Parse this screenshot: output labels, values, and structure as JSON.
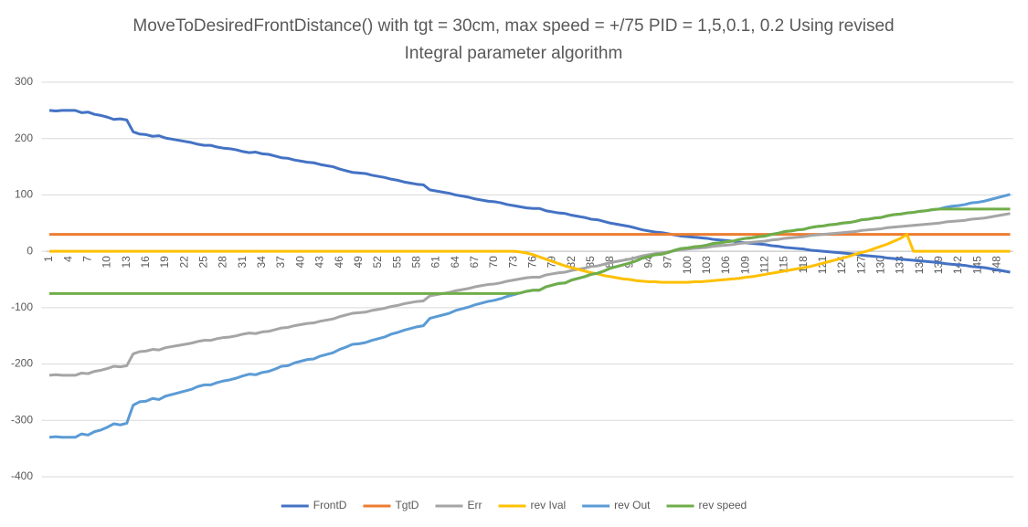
{
  "chart_data": {
    "type": "line",
    "title": "MoveToDesiredFrontDistance() with tgt = 30cm, max speed = +/75 PID = 1,5,0.1, 0.2 Using revised Integral parameter algorithm",
    "categories": [
      1,
      null,
      null,
      4,
      null,
      null,
      7,
      null,
      null,
      10,
      null,
      null,
      13,
      null,
      null,
      16,
      null,
      null,
      19,
      null,
      null,
      22,
      null,
      null,
      25,
      null,
      null,
      28,
      null,
      null,
      31,
      null,
      null,
      34,
      null,
      null,
      37,
      null,
      null,
      40,
      null,
      null,
      43,
      null,
      null,
      46,
      null,
      null,
      49,
      null,
      null,
      52,
      null,
      null,
      55,
      null,
      null,
      58,
      null,
      null,
      61,
      null,
      null,
      64,
      null,
      null,
      67,
      null,
      null,
      70,
      null,
      null,
      73,
      null,
      null,
      76,
      null,
      null,
      79,
      null,
      null,
      82,
      null,
      null,
      85,
      null,
      null,
      88,
      null,
      null,
      91,
      null,
      null,
      94,
      null,
      null,
      97,
      null,
      null,
      100,
      null,
      null,
      103,
      null,
      null,
      106,
      null,
      null,
      109,
      null,
      null,
      112,
      null,
      null,
      115,
      null,
      null,
      118,
      null,
      null,
      121,
      null,
      null,
      124,
      null,
      null,
      127,
      null,
      null,
      130,
      null,
      null,
      133,
      null,
      null,
      136,
      null,
      null,
      139,
      null,
      null,
      142,
      null,
      null,
      145,
      null,
      null,
      148,
      null,
      null
    ],
    "ylim": [
      -400,
      300
    ],
    "yticks": [
      -400,
      -300,
      -200,
      -100,
      0,
      100,
      200,
      300
    ],
    "grid": true,
    "legend": "bottom",
    "series": [
      {
        "name": "FrontD",
        "color": "#4472c4",
        "values": [
          250,
          249,
          250,
          250,
          250,
          246,
          247,
          243,
          241,
          238,
          234,
          235,
          233,
          212,
          208,
          207,
          204,
          205,
          201,
          199,
          197,
          195,
          193,
          190,
          188,
          188,
          185,
          183,
          182,
          180,
          177,
          175,
          176,
          173,
          172,
          169,
          166,
          165,
          162,
          160,
          158,
          157,
          154,
          152,
          150,
          146,
          143,
          140,
          139,
          138,
          135,
          133,
          131,
          128,
          126,
          123,
          121,
          119,
          118,
          109,
          107,
          105,
          103,
          100,
          98,
          96,
          93,
          91,
          89,
          88,
          86,
          83,
          81,
          79,
          77,
          76,
          76,
          72,
          70,
          68,
          67,
          64,
          62,
          60,
          57,
          56,
          53,
          50,
          48,
          46,
          44,
          41,
          38,
          36,
          34,
          33,
          31,
          29,
          27,
          26,
          25,
          24,
          23,
          21,
          20,
          19,
          18,
          16,
          15,
          14,
          13,
          12,
          10,
          9,
          7,
          6,
          5,
          4,
          2,
          1,
          0,
          -1,
          -2,
          -3,
          -4,
          -5,
          -7,
          -8,
          -9,
          -10,
          -12,
          -13,
          -14,
          -15,
          -16,
          -17,
          -18,
          -19,
          -20,
          -22,
          -23,
          -24,
          -25,
          -27,
          -28,
          -29,
          -31,
          -33,
          -35,
          -37
        ]
      },
      {
        "name": "TgtD",
        "color": "#ed7d31",
        "values": [
          30,
          30,
          30,
          30,
          30,
          30,
          30,
          30,
          30,
          30,
          30,
          30,
          30,
          30,
          30,
          30,
          30,
          30,
          30,
          30,
          30,
          30,
          30,
          30,
          30,
          30,
          30,
          30,
          30,
          30,
          30,
          30,
          30,
          30,
          30,
          30,
          30,
          30,
          30,
          30,
          30,
          30,
          30,
          30,
          30,
          30,
          30,
          30,
          30,
          30,
          30,
          30,
          30,
          30,
          30,
          30,
          30,
          30,
          30,
          30,
          30,
          30,
          30,
          30,
          30,
          30,
          30,
          30,
          30,
          30,
          30,
          30,
          30,
          30,
          30,
          30,
          30,
          30,
          30,
          30,
          30,
          30,
          30,
          30,
          30,
          30,
          30,
          30,
          30,
          30,
          30,
          30,
          30,
          30,
          30,
          30,
          30,
          30,
          30,
          30,
          30,
          30,
          30,
          30,
          30,
          30,
          30,
          30,
          30,
          30,
          30,
          30,
          30,
          30,
          30,
          30,
          30,
          30,
          30,
          30,
          30,
          30,
          30,
          30,
          30,
          30,
          30,
          30,
          30,
          30,
          30,
          30,
          30,
          30,
          30,
          30,
          30,
          30,
          30,
          30,
          30,
          30,
          30,
          30,
          30,
          30,
          30,
          30,
          30,
          30
        ]
      },
      {
        "name": "Err",
        "color": "#a5a5a5",
        "values": [
          -220,
          -219,
          -220,
          -220,
          -220,
          -216,
          -217,
          -213,
          -211,
          -208,
          -204,
          -205,
          -203,
          -182,
          -178,
          -177,
          -174,
          -175,
          -171,
          -169,
          -167,
          -165,
          -163,
          -160,
          -158,
          -158,
          -155,
          -153,
          -152,
          -150,
          -147,
          -145,
          -146,
          -143,
          -142,
          -139,
          -136,
          -135,
          -132,
          -130,
          -128,
          -127,
          -124,
          -122,
          -120,
          -116,
          -113,
          -110,
          -109,
          -108,
          -105,
          -103,
          -101,
          -98,
          -96,
          -93,
          -91,
          -89,
          -88,
          -79,
          -77,
          -75,
          -73,
          -70,
          -68,
          -66,
          -63,
          -61,
          -59,
          -58,
          -56,
          -53,
          -51,
          -49,
          -47,
          -46,
          -46,
          -42,
          -40,
          -38,
          -37,
          -34,
          -32,
          -30,
          -27,
          -26,
          -23,
          -20,
          -18,
          -16,
          -14,
          -11,
          -8,
          -6,
          -4,
          -3,
          -1,
          1,
          3,
          4,
          5,
          6,
          7,
          9,
          10,
          11,
          12,
          14,
          15,
          16,
          17,
          18,
          20,
          21,
          23,
          24,
          25,
          26,
          28,
          29,
          30,
          31,
          32,
          33,
          34,
          35,
          37,
          38,
          39,
          40,
          42,
          43,
          44,
          45,
          46,
          47,
          48,
          49,
          50,
          52,
          53,
          54,
          55,
          57,
          58,
          59,
          61,
          63,
          65,
          67
        ]
      },
      {
        "name": "rev Ival",
        "color": "#ffc000",
        "values": [
          0,
          0,
          0,
          0,
          0,
          0,
          0,
          0,
          0,
          0,
          0,
          0,
          0,
          0,
          0,
          0,
          0,
          0,
          0,
          0,
          0,
          0,
          0,
          0,
          0,
          0,
          0,
          0,
          0,
          0,
          0,
          0,
          0,
          0,
          0,
          0,
          0,
          0,
          0,
          0,
          0,
          0,
          0,
          0,
          0,
          0,
          0,
          0,
          0,
          0,
          0,
          0,
          0,
          0,
          0,
          0,
          0,
          0,
          0,
          0,
          0,
          0,
          0,
          0,
          0,
          0,
          0,
          0,
          0,
          0,
          0,
          0,
          0,
          -1,
          -3,
          -6,
          -10,
          -14,
          -18,
          -22,
          -26,
          -29,
          -32,
          -35,
          -38,
          -40,
          -43,
          -45,
          -47,
          -49,
          -50,
          -52,
          -53,
          -54,
          -54,
          -55,
          -55,
          -55,
          -55,
          -55,
          -54,
          -54,
          -53,
          -52,
          -51,
          -50,
          -49,
          -48,
          -46,
          -45,
          -43,
          -41,
          -39,
          -37,
          -35,
          -33,
          -31,
          -29,
          -27,
          -24,
          -21,
          -18,
          -15,
          -12,
          -9,
          -5,
          -2,
          1,
          5,
          9,
          13,
          18,
          23,
          30,
          0,
          0,
          0,
          0,
          0,
          0,
          0,
          0,
          0,
          0,
          0,
          0,
          0,
          0,
          0,
          0
        ]
      },
      {
        "name": "rev Out",
        "color": "#5b9bd5",
        "values": [
          -330,
          -329,
          -330,
          -330,
          -330,
          -324,
          -326,
          -320,
          -317,
          -312,
          -306,
          -308,
          -305,
          -273,
          -267,
          -266,
          -261,
          -263,
          -257,
          -254,
          -251,
          -248,
          -245,
          -240,
          -237,
          -237,
          -233,
          -230,
          -228,
          -225,
          -221,
          -218,
          -219,
          -215,
          -213,
          -209,
          -204,
          -203,
          -198,
          -195,
          -192,
          -191,
          -186,
          -183,
          -180,
          -174,
          -170,
          -165,
          -164,
          -162,
          -158,
          -155,
          -152,
          -147,
          -144,
          -140,
          -137,
          -134,
          -132,
          -119,
          -116,
          -113,
          -110,
          -105,
          -102,
          -99,
          -95,
          -92,
          -89,
          -87,
          -84,
          -80,
          -77,
          -74,
          -71,
          -69,
          -69,
          -63,
          -60,
          -57,
          -56,
          -51,
          -48,
          -45,
          -41,
          -39,
          -35,
          -30,
          -27,
          -24,
          -21,
          -17,
          -12,
          -9,
          -6,
          -5,
          -2,
          2,
          5,
          6,
          8,
          9,
          11,
          14,
          15,
          17,
          18,
          21,
          23,
          24,
          26,
          27,
          30,
          32,
          35,
          36,
          38,
          39,
          42,
          44,
          45,
          47,
          48,
          50,
          51,
          53,
          56,
          57,
          59,
          60,
          63,
          65,
          66,
          68,
          69,
          71,
          72,
          74,
          75,
          78,
          80,
          81,
          83,
          86,
          87,
          89,
          92,
          95,
          98,
          101
        ]
      },
      {
        "name": "rev speed",
        "color": "#70ad47",
        "values": [
          -75,
          -75,
          -75,
          -75,
          -75,
          -75,
          -75,
          -75,
          -75,
          -75,
          -75,
          -75,
          -75,
          -75,
          -75,
          -75,
          -75,
          -75,
          -75,
          -75,
          -75,
          -75,
          -75,
          -75,
          -75,
          -75,
          -75,
          -75,
          -75,
          -75,
          -75,
          -75,
          -75,
          -75,
          -75,
          -75,
          -75,
          -75,
          -75,
          -75,
          -75,
          -75,
          -75,
          -75,
          -75,
          -75,
          -75,
          -75,
          -75,
          -75,
          -75,
          -75,
          -75,
          -75,
          -75,
          -75,
          -75,
          -75,
          -75,
          -75,
          -75,
          -75,
          -75,
          -75,
          -75,
          -75,
          -75,
          -75,
          -75,
          -75,
          -75,
          -75,
          -75,
          -74,
          -71,
          -69,
          -69,
          -63,
          -60,
          -57,
          -56,
          -51,
          -48,
          -45,
          -41,
          -39,
          -35,
          -30,
          -27,
          -24,
          -21,
          -17,
          -12,
          -9,
          -6,
          -5,
          -2,
          2,
          5,
          6,
          8,
          9,
          11,
          14,
          15,
          17,
          18,
          21,
          23,
          24,
          26,
          27,
          30,
          32,
          35,
          36,
          38,
          39,
          42,
          44,
          45,
          47,
          48,
          50,
          51,
          53,
          56,
          57,
          59,
          60,
          63,
          65,
          66,
          68,
          69,
          71,
          72,
          74,
          75,
          75,
          75,
          75,
          75,
          75,
          75,
          75,
          75,
          75,
          75,
          75
        ]
      }
    ]
  }
}
